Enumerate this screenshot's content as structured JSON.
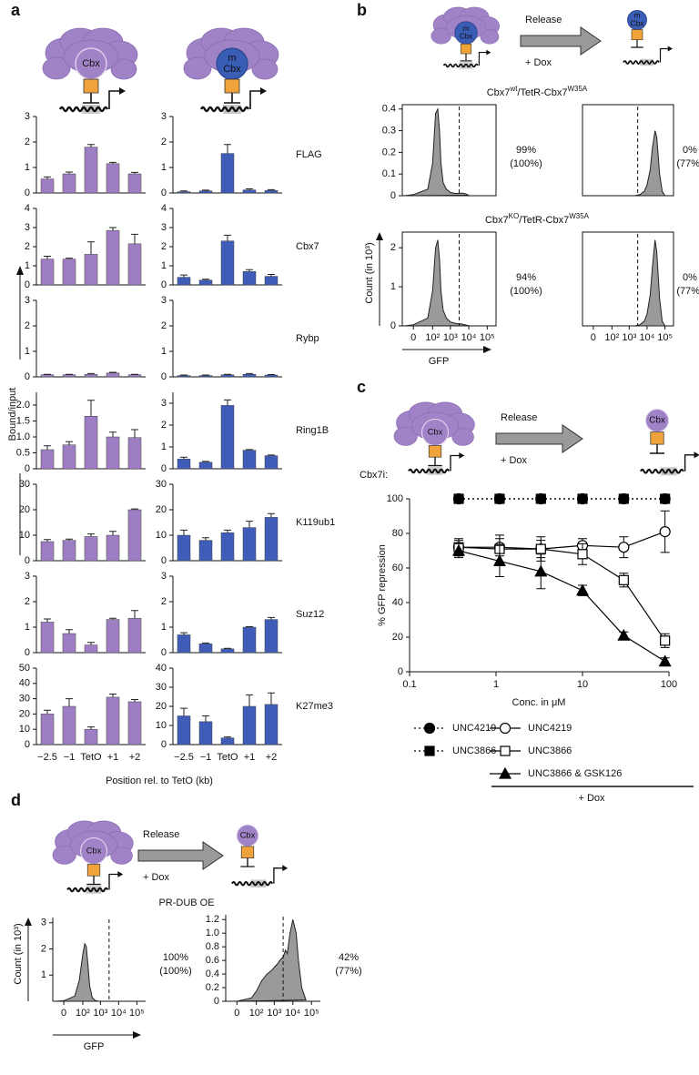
{
  "panel_labels": [
    "a",
    "b",
    "c",
    "d"
  ],
  "diagram": {
    "cbx": "Cbx",
    "m": "m",
    "release": "Release",
    "dox": "+ Dox",
    "cbx7i": "Cbx7i:"
  },
  "panel_a": {
    "row_labels": [
      "FLAG",
      "Cbx7",
      "Rybp",
      "Ring1B",
      "K119ub1",
      "Suz12",
      "K27me3"
    ],
    "ylabel": "Bound/input",
    "xlabel": "Position rel. to TetO (kb)"
  },
  "chart_data": [
    {
      "type": "bar",
      "color": "#9d7ec3",
      "categories": [
        null,
        null,
        null,
        null,
        null
      ],
      "values": [
        0.55,
        0.75,
        1.8,
        1.15,
        0.75
      ],
      "errors": [
        0.08,
        0.07,
        0.1,
        0.05,
        0.06
      ],
      "ylim": [
        0,
        3
      ],
      "yticks": [
        0,
        1,
        2,
        3
      ]
    },
    {
      "type": "bar",
      "color": "#3e5cb8",
      "categories": [
        null,
        null,
        null,
        null,
        null
      ],
      "values": [
        0.05,
        0.08,
        1.55,
        0.12,
        0.1
      ],
      "errors": [
        0.03,
        0.03,
        0.35,
        0.04,
        0.03
      ],
      "ylim": [
        0,
        3
      ],
      "yticks": [
        0,
        1,
        2,
        3
      ]
    },
    {
      "type": "bar",
      "color": "#9d7ec3",
      "categories": [
        null,
        null,
        null,
        null,
        null
      ],
      "values": [
        1.35,
        1.35,
        1.6,
        2.85,
        2.15
      ],
      "errors": [
        0.15,
        0.05,
        0.65,
        0.15,
        0.5
      ],
      "ylim": [
        0,
        4
      ],
      "yticks": [
        0,
        1,
        2,
        3,
        4
      ]
    },
    {
      "type": "bar",
      "color": "#3e5cb8",
      "categories": [
        null,
        null,
        null,
        null,
        null
      ],
      "values": [
        0.4,
        0.25,
        2.3,
        0.7,
        0.45
      ],
      "errors": [
        0.12,
        0.05,
        0.3,
        0.1,
        0.1
      ],
      "ylim": [
        0,
        4
      ],
      "yticks": [
        0,
        1,
        2,
        3,
        4
      ]
    },
    {
      "type": "bar",
      "color": "#9d7ec3",
      "categories": [
        null,
        null,
        null,
        null,
        null
      ],
      "values": [
        0.08,
        0.08,
        0.1,
        0.15,
        0.08
      ],
      "errors": [
        0.02,
        0.02,
        0.03,
        0.03,
        0.02
      ],
      "ylim": [
        0,
        3
      ],
      "yticks": [
        0,
        1,
        2,
        3
      ]
    },
    {
      "type": "bar",
      "color": "#3e5cb8",
      "categories": [
        null,
        null,
        null,
        null,
        null
      ],
      "values": [
        0.05,
        0.05,
        0.08,
        0.1,
        0.07
      ],
      "errors": [
        0.02,
        0.02,
        0.02,
        0.03,
        0.02
      ],
      "ylim": [
        0,
        3
      ],
      "yticks": [
        0,
        1,
        2,
        3
      ]
    },
    {
      "type": "bar",
      "color": "#9d7ec3",
      "categories": [
        null,
        null,
        null,
        null,
        null
      ],
      "values": [
        0.6,
        0.75,
        1.65,
        1.0,
        0.98
      ],
      "errors": [
        0.12,
        0.1,
        0.5,
        0.15,
        0.25
      ],
      "ylim": [
        0,
        2.4
      ],
      "yticks": [
        0,
        0.5,
        {
          "value": 1,
          "label": "1.0"
        },
        1.5,
        {
          "value": 2,
          "label": "2.0"
        }
      ]
    },
    {
      "type": "bar",
      "color": "#3e5cb8",
      "categories": [
        null,
        null,
        null,
        null,
        null
      ],
      "values": [
        0.45,
        0.3,
        2.9,
        0.85,
        0.6
      ],
      "errors": [
        0.08,
        0.04,
        0.25,
        0.03,
        0.03
      ],
      "ylim": [
        0,
        3.5
      ],
      "yticks": [
        0,
        1,
        2,
        3
      ]
    },
    {
      "type": "bar",
      "color": "#9d7ec3",
      "categories": [
        null,
        null,
        null,
        null,
        null
      ],
      "values": [
        7.5,
        8,
        9.5,
        10,
        20
      ],
      "errors": [
        0.8,
        0.5,
        1,
        1.5,
        0.3
      ],
      "ylim": [
        0,
        30
      ],
      "yticks": [
        0,
        10,
        20,
        30
      ]
    },
    {
      "type": "bar",
      "color": "#3e5cb8",
      "categories": [
        null,
        null,
        null,
        null,
        null
      ],
      "values": [
        10,
        8,
        11,
        13,
        17
      ],
      "errors": [
        2,
        1,
        1,
        2.5,
        1.5
      ],
      "ylim": [
        0,
        30
      ],
      "yticks": [
        0,
        10,
        20,
        30
      ]
    },
    {
      "type": "bar",
      "color": "#9d7ec3",
      "categories": [
        null,
        null,
        null,
        null,
        null
      ],
      "values": [
        1.2,
        0.75,
        0.3,
        1.3,
        1.35
      ],
      "errors": [
        0.12,
        0.15,
        0.1,
        0.05,
        0.3
      ],
      "ylim": [
        0,
        3
      ],
      "yticks": [
        0,
        1,
        2,
        3
      ]
    },
    {
      "type": "bar",
      "color": "#3e5cb8",
      "categories": [
        null,
        null,
        null,
        null,
        null
      ],
      "values": [
        0.7,
        0.35,
        0.15,
        1.0,
        1.3
      ],
      "errors": [
        0.08,
        0.03,
        0.02,
        0.02,
        0.08
      ],
      "ylim": [
        0,
        3
      ],
      "yticks": [
        0,
        1,
        2,
        3
      ]
    },
    {
      "type": "bar",
      "color": "#9d7ec3",
      "categories": [
        "−2.5",
        "−1",
        "TetO",
        "+1",
        "+2"
      ],
      "values": [
        20,
        25,
        10,
        31,
        28
      ],
      "errors": [
        2.5,
        5,
        1.5,
        2,
        1.5
      ],
      "ylim": [
        0,
        50
      ],
      "yticks": [
        0,
        10,
        20,
        30,
        40,
        50
      ]
    },
    {
      "type": "bar",
      "color": "#3e5cb8",
      "categories": [
        "−2.5",
        "−1",
        "TetO",
        "+1",
        "+2"
      ],
      "values": [
        15,
        12,
        3.5,
        20,
        21
      ],
      "errors": [
        4,
        3,
        0.5,
        6,
        6
      ],
      "ylim": [
        0,
        40
      ],
      "yticks": [
        0,
        10,
        20,
        30,
        40
      ]
    },
    {
      "type": "area",
      "color": "#9a9a9a",
      "frame": true,
      "xscale": "symlog",
      "title_parts": [
        "Cbx7",
        "wt",
        "/TetR-Cbx7",
        "W35A"
      ],
      "annotation": [
        "99%",
        "(100%)"
      ],
      "x": [
        -20,
        0,
        50,
        100,
        150,
        200,
        250,
        300,
        400,
        600,
        1000,
        2000,
        4000,
        6000,
        10000
      ],
      "values": [
        0,
        0.005,
        0.03,
        0.15,
        0.38,
        0.4,
        0.3,
        0.15,
        0.06,
        0.03,
        0.015,
        0.01,
        0.012,
        0.01,
        0.002
      ],
      "xlim": [
        -30,
        300000
      ],
      "ylim": [
        0,
        0.42
      ],
      "yticks": [
        0,
        0.1,
        0.2,
        0.3,
        0.4
      ],
      "threshold": 3000
    },
    {
      "type": "area",
      "color": "#9a9a9a",
      "frame": true,
      "xscale": "symlog",
      "annotation": [
        "0%",
        "(77%)"
      ],
      "x": [
        2000,
        4000,
        7000,
        10000,
        15000,
        20000,
        28000,
        35000,
        50000,
        70000,
        100000
      ],
      "values": [
        0,
        0.005,
        0.02,
        0.05,
        0.12,
        0.22,
        0.3,
        0.27,
        0.1,
        0.02,
        0
      ],
      "xlim": [
        -30,
        300000
      ],
      "ylim": [
        0,
        0.42
      ],
      "threshold": 3000
    },
    {
      "type": "area",
      "color": "#9a9a9a",
      "frame": true,
      "xscale": "symlog",
      "title_parts": [
        "Cbx7",
        "KO",
        "/TetR-Cbx7",
        "W35A"
      ],
      "annotation": [
        "94%",
        "(100%)"
      ],
      "ylabel": "Count (in 10³)",
      "xlabel": "GFP",
      "x": [
        -20,
        0,
        50,
        100,
        150,
        200,
        250,
        300,
        400,
        600,
        1000,
        2000,
        4000,
        6000,
        10000
      ],
      "values": [
        0,
        0.03,
        0.2,
        0.9,
        2.0,
        2.2,
        1.7,
        0.9,
        0.4,
        0.2,
        0.1,
        0.06,
        0.05,
        0.03,
        0.005
      ],
      "xlim": [
        -30,
        300000
      ],
      "ylim": [
        0,
        2.4
      ],
      "yticks": [
        0,
        1,
        2
      ],
      "threshold": 3000,
      "xticks": [
        0,
        {
          "value": 100,
          "label": "10²"
        },
        {
          "value": 1000,
          "label": "10³"
        },
        {
          "value": 10000,
          "label": "10⁴"
        },
        {
          "value": 100000,
          "label": "10⁵"
        }
      ]
    },
    {
      "type": "area",
      "color": "#9a9a9a",
      "frame": true,
      "xscale": "symlog",
      "annotation": [
        "0%",
        "(77%)"
      ],
      "x": [
        2000,
        4000,
        7000,
        10000,
        15000,
        20000,
        28000,
        35000,
        50000,
        70000,
        100000
      ],
      "values": [
        0,
        0.03,
        0.12,
        0.3,
        0.8,
        1.5,
        2.2,
        1.9,
        0.7,
        0.12,
        0
      ],
      "xlim": [
        -30,
        300000
      ],
      "ylim": [
        0,
        2.4
      ],
      "threshold": 3000,
      "xticks": [
        0,
        {
          "value": 100,
          "label": "10²"
        },
        {
          "value": 1000,
          "label": "10³"
        },
        {
          "value": 10000,
          "label": "10⁴"
        },
        {
          "value": 100000,
          "label": "10⁵"
        }
      ]
    },
    {
      "type": "line",
      "xscale": "log",
      "ylabel": "% GFP repression",
      "xlabel": "Conc. in μM",
      "annotation": "+ Dox",
      "x": [
        0.37,
        1.1,
        3.3,
        10,
        30,
        90
      ],
      "xlim": [
        0.1,
        100
      ],
      "xticks": [
        0.1,
        1,
        10,
        100
      ],
      "ylim": [
        0,
        100
      ],
      "yticks": [
        0,
        20,
        40,
        60,
        80,
        100
      ],
      "series": [
        {
          "name": "UNC4219",
          "color": "#000000",
          "marker": "circle",
          "filled": true,
          "dash": "dotted",
          "values": [
            100,
            100,
            100,
            100,
            100,
            100
          ]
        },
        {
          "name": "UNC3866",
          "color": "#000000",
          "marker": "square",
          "filled": true,
          "dash": "dotted",
          "values": [
            100,
            100,
            100,
            100,
            100,
            100
          ]
        },
        {
          "name": "UNC4219",
          "color": "#000000",
          "marker": "circle",
          "filled": false,
          "dash": "solid",
          "values": [
            72,
            72,
            71,
            73,
            72,
            81
          ],
          "errors": [
            4,
            5,
            5,
            4,
            6,
            12
          ]
        },
        {
          "name": "UNC3866",
          "color": "#000000",
          "marker": "square",
          "filled": false,
          "dash": "solid",
          "values": [
            72,
            71,
            71,
            68,
            53,
            18
          ],
          "errors": [
            5,
            8,
            7,
            6,
            4,
            4
          ]
        },
        {
          "name": "UNC3866 & GSK126",
          "color": "#000000",
          "marker": "triangle",
          "filled": true,
          "dash": "solid",
          "values": [
            70,
            64,
            58,
            47,
            21,
            6
          ],
          "errors": [
            4,
            9,
            10,
            3,
            2,
            2
          ]
        }
      ]
    },
    {
      "type": "area",
      "color": "#9a9a9a",
      "frame": false,
      "xscale": "symlog",
      "title": "PR-DUB OE",
      "annotation": [
        "100%",
        "(100%)"
      ],
      "ylabel": "Count (in 10³)",
      "xlabel": "GFP",
      "x": [
        -20,
        0,
        30,
        60,
        100,
        130,
        160,
        200,
        250,
        350,
        500,
        800
      ],
      "values": [
        0,
        0.02,
        0.2,
        0.8,
        1.8,
        2.2,
        2.1,
        1.4,
        0.6,
        0.15,
        0.03,
        0
      ],
      "xlim": [
        -30,
        300000
      ],
      "ylim": [
        0,
        3.2
      ],
      "yticks": [
        1,
        2,
        3
      ],
      "threshold": 3000,
      "xticks": [
        0,
        {
          "value": 100,
          "label": "10²"
        },
        {
          "value": 1000,
          "label": "10³"
        },
        {
          "value": 10000,
          "label": "10⁴"
        },
        {
          "value": 100000,
          "label": "10⁵"
        }
      ]
    },
    {
      "type": "area",
      "color": "#9a9a9a",
      "frame": false,
      "xscale": "symlog",
      "annotation": [
        "42%",
        "(77%)"
      ],
      "x": [
        0,
        50,
        100,
        200,
        400,
        700,
        1000,
        1500,
        2000,
        3000,
        4000,
        5000,
        7000,
        10000,
        15000,
        20000,
        30000,
        50000
      ],
      "values": [
        0,
        0.05,
        0.15,
        0.3,
        0.4,
        0.45,
        0.5,
        0.55,
        0.6,
        0.65,
        0.75,
        0.7,
        1.0,
        1.2,
        1.0,
        0.6,
        0.2,
        0.02
      ],
      "xlim": [
        -30,
        300000
      ],
      "ylim": [
        0,
        1.27
      ],
      "yticks": [
        0,
        0.2,
        0.4,
        0.6,
        0.8,
        {
          "value": 1,
          "label": "1.0"
        },
        1.2
      ],
      "threshold": 3000,
      "xticks": [
        0,
        {
          "value": 100,
          "label": "10²"
        },
        {
          "value": 1000,
          "label": "10³"
        },
        {
          "value": 10000,
          "label": "10⁴"
        },
        {
          "value": 100000,
          "label": "10⁵"
        }
      ]
    }
  ]
}
